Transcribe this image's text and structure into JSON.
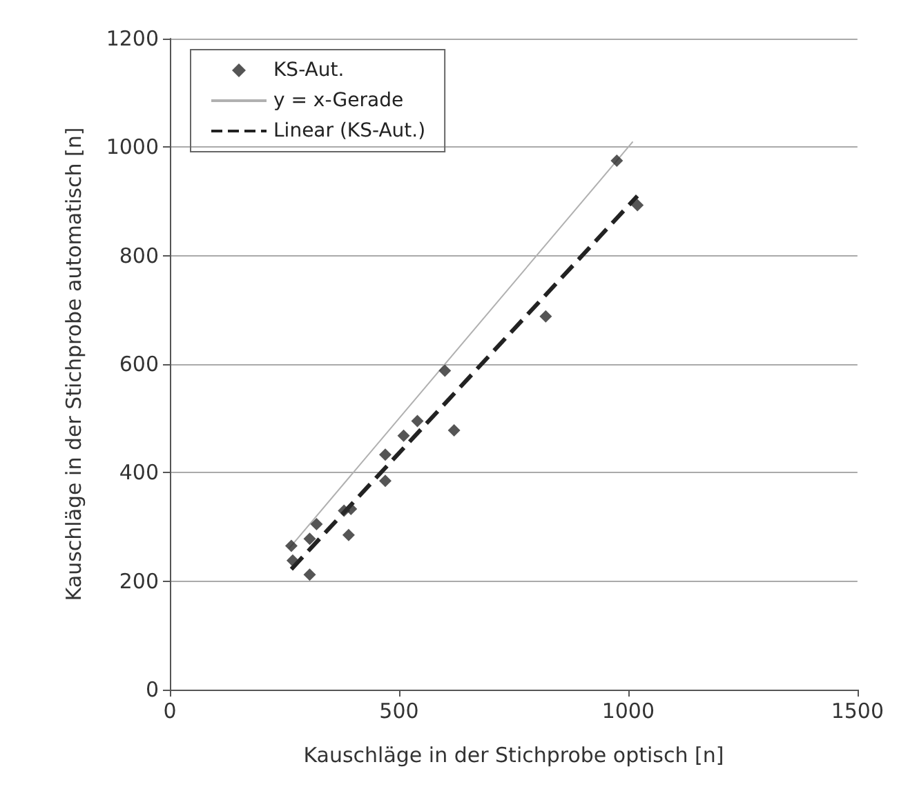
{
  "chart_data": {
    "type": "scatter",
    "xlabel": "Kauschläge in der Stichprobe optisch [n]",
    "ylabel": "Kauschläge in der Stichprobe automatisch [n]",
    "xlim": [
      0,
      1500
    ],
    "xticks": [
      0,
      500,
      1000,
      1500
    ],
    "ylim": [
      0,
      1200
    ],
    "yticks": [
      0,
      200,
      400,
      600,
      800,
      1000,
      1200
    ],
    "grid": "y",
    "legend": "top left",
    "series": [
      {
        "name": "KS-Aut.",
        "marker": "diamond",
        "color": "#2b2b2b",
        "x": [
          265,
          268,
          305,
          305,
          320,
          380,
          390,
          395,
          470,
          470,
          510,
          540,
          600,
          620,
          820,
          975,
          1020
        ],
        "values": [
          265,
          238,
          212,
          278,
          305,
          330,
          285,
          333,
          433,
          385,
          468,
          495,
          588,
          478,
          688,
          975,
          893
        ]
      },
      {
        "name": "y = x-Gerade",
        "type": "line",
        "marker": "none",
        "line_style": "solid",
        "color": "#b0b0b0",
        "x": [
          260,
          1010
        ],
        "values": [
          260,
          1010
        ]
      },
      {
        "name": "Linear (KS-Aut.)",
        "type": "line",
        "marker": "none",
        "line_style": "dashed",
        "color": "#222222",
        "x": [
          265,
          1020
        ],
        "values": [
          222,
          910
        ]
      }
    ]
  }
}
